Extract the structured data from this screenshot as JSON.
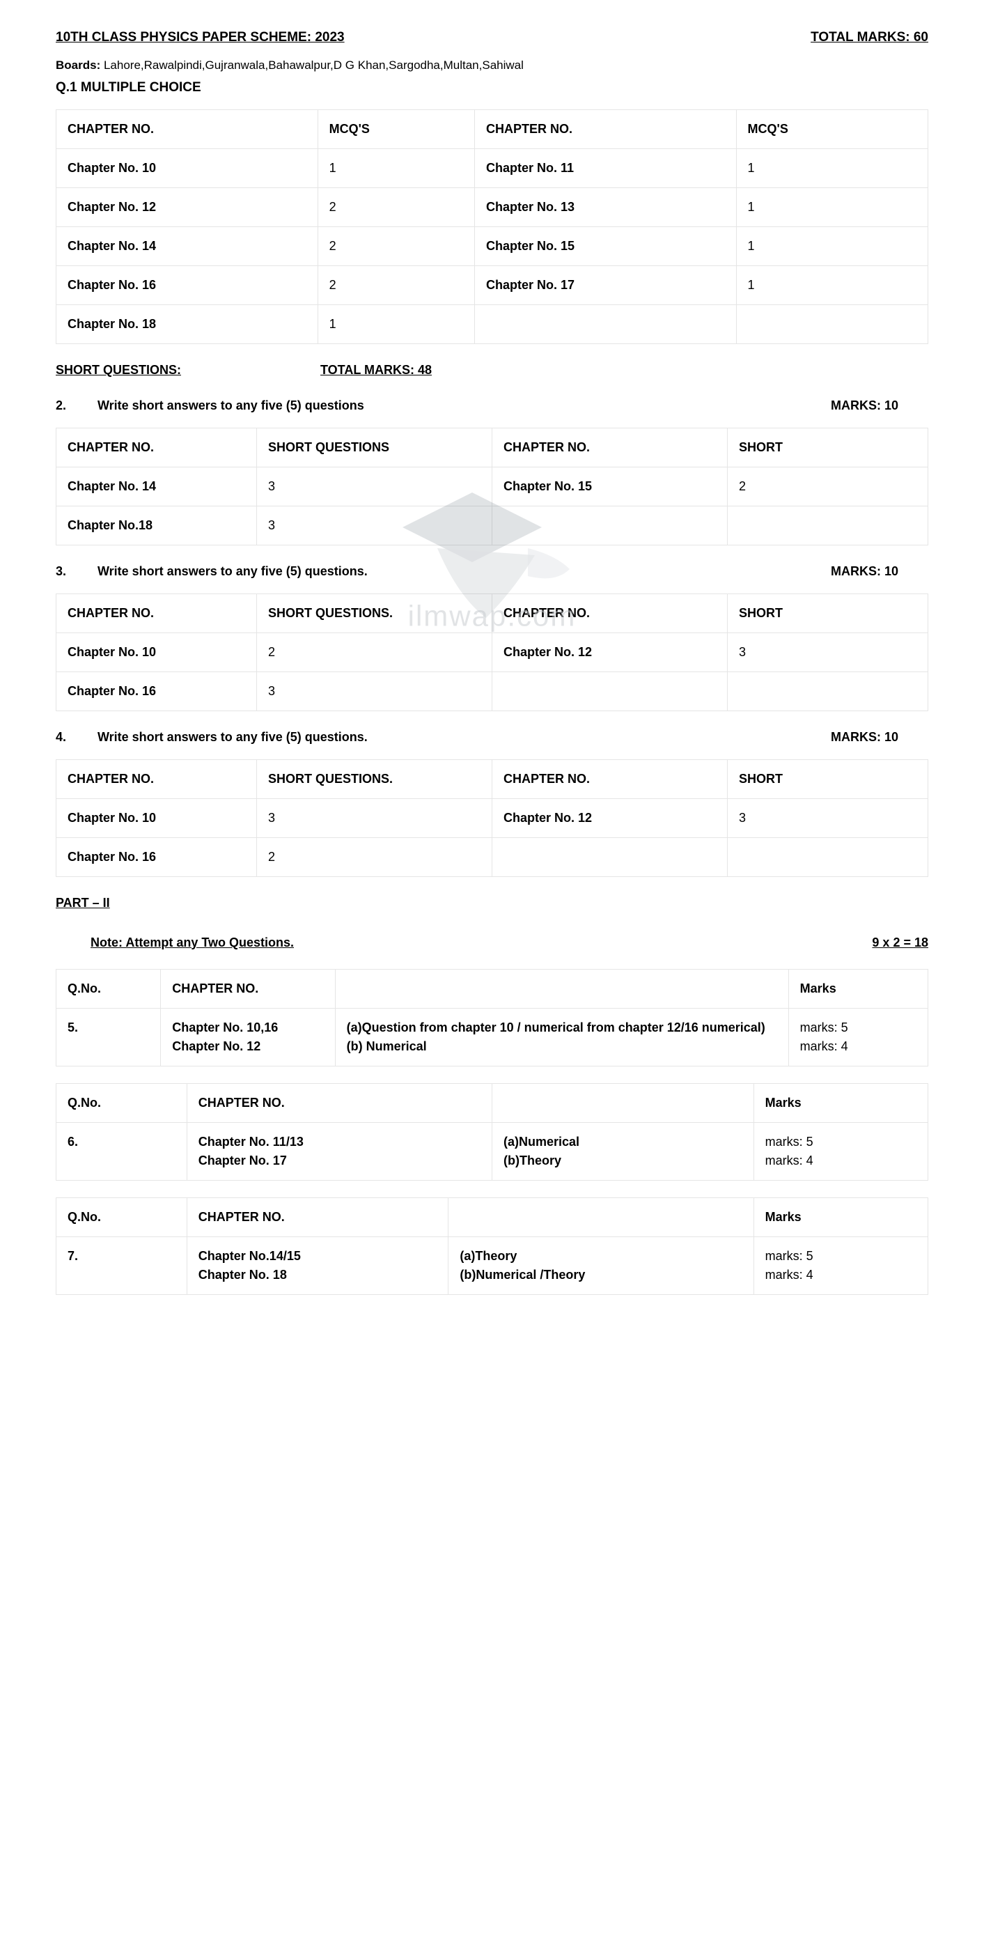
{
  "header": {
    "title": "10TH CLASS PHYSICS PAPER SCHEME: 2023",
    "totalMarks": "TOTAL MARKS: 60"
  },
  "boards": {
    "label": "Boards:",
    "value": "Lahore,Rawalpindi,Gujranwala,Bahawalpur,D G Khan,Sargodha,Multan,Sahiwal"
  },
  "q1Title": "Q.1 MULTIPLE CHOICE",
  "mcqTable": {
    "headers": [
      "CHAPTER NO.",
      "MCQ'S",
      "CHAPTER NO.",
      "MCQ'S"
    ],
    "rows": [
      [
        "Chapter No. 10",
        "1",
        "Chapter No. 11",
        "1"
      ],
      [
        "Chapter No. 12",
        "2",
        "Chapter No. 13",
        "1"
      ],
      [
        "Chapter No. 14",
        "2",
        "Chapter No. 15",
        "1"
      ],
      [
        "Chapter No. 16",
        "2",
        "Chapter No. 17",
        "1"
      ],
      [
        "Chapter No. 18",
        "1",
        "",
        ""
      ]
    ]
  },
  "shortHeader": {
    "left": "SHORT QUESTIONS:",
    "right": "TOTAL MARKS: 48"
  },
  "q2": {
    "num": "2.",
    "text": "Write short answers to any five (5) questions",
    "marks": "MARKS: 10",
    "headers": [
      "CHAPTER NO.",
      "SHORT QUESTIONS",
      "CHAPTER NO.",
      "SHORT"
    ],
    "rows": [
      [
        "Chapter No. 14",
        "3",
        "Chapter No. 15",
        "2"
      ],
      [
        "Chapter No.18",
        "3",
        "",
        ""
      ]
    ]
  },
  "q3": {
    "num": "3.",
    "text": "Write short answers to any five (5) questions.",
    "marks": "MARKS: 10",
    "headers": [
      "CHAPTER NO.",
      "SHORT QUESTIONS.",
      "CHAPTER NO.",
      "SHORT"
    ],
    "rows": [
      [
        "Chapter No. 10",
        "2",
        "Chapter No. 12",
        "3"
      ],
      [
        "Chapter No. 16",
        "3",
        "",
        ""
      ]
    ]
  },
  "q4": {
    "num": "4.",
    "text": "Write short answers to any five (5) questions.",
    "marks": "MARKS: 10",
    "headers": [
      "CHAPTER NO.",
      "SHORT QUESTIONS.",
      "CHAPTER NO.",
      "SHORT"
    ],
    "rows": [
      [
        "Chapter No. 10",
        "3",
        "Chapter No. 12",
        "3"
      ],
      [
        "Chapter No. 16",
        "2",
        "",
        ""
      ]
    ]
  },
  "part2": "PART – II",
  "note": {
    "left": "Note:   Attempt any Two Questions.",
    "right": "9 x 2 = 18"
  },
  "q5Table": {
    "headers": [
      "Q.No.",
      "CHAPTER NO.",
      "",
      "Marks"
    ],
    "rows": [
      [
        "5.",
        "Chapter No. 10,16\nChapter No. 12",
        "(a)Question from chapter 10 / numerical from chapter 12/16 numerical)\n(b) Numerical",
        "marks: 5\nmarks: 4"
      ]
    ]
  },
  "q6Table": {
    "headers": [
      "Q.No.",
      "CHAPTER NO.",
      "",
      "Marks"
    ],
    "rows": [
      [
        "6.",
        "Chapter No. 11/13\nChapter No. 17",
        "(a)Numerical\n(b)Theory",
        "marks: 5\nmarks: 4"
      ]
    ]
  },
  "q7Table": {
    "headers": [
      "Q.No.",
      "CHAPTER NO.",
      "",
      "Marks"
    ],
    "rows": [
      [
        "7.",
        "Chapter No.14/15\nChapter No. 18",
        "(a)Theory\n(b)Numerical /Theory",
        "marks: 5\nmarks: 4"
      ]
    ]
  },
  "watermark": "ilmwap.com",
  "colors": {
    "text": "#000000",
    "border": "#e5e5e5",
    "background": "#ffffff",
    "watermark": "#c5c9cd"
  }
}
